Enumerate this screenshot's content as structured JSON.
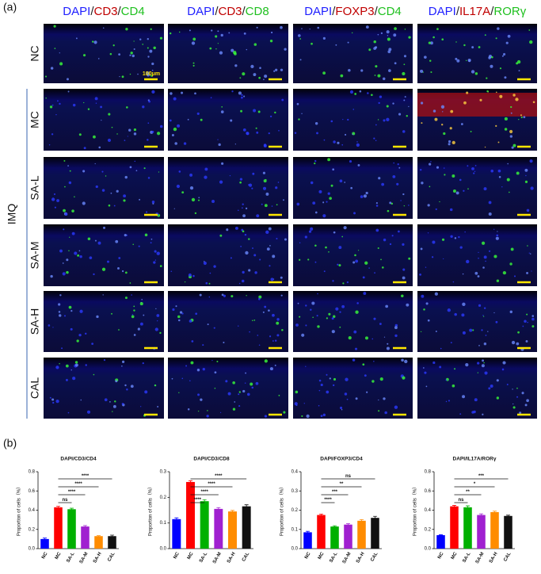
{
  "figure": {
    "panel_a": "(a)",
    "panel_b": "(b)",
    "group_label": "IMQ",
    "scale_label": "100μm",
    "columns": [
      [
        {
          "text": "DAPI",
          "color": "#1f1fff"
        },
        {
          "text": "/"
        },
        {
          "text": "CD3",
          "color": "#c00000"
        },
        {
          "text": "/"
        },
        {
          "text": "CD4",
          "color": "#1fc01f"
        }
      ],
      [
        {
          "text": "DAPI",
          "color": "#1f1fff"
        },
        {
          "text": "/"
        },
        {
          "text": "CD3",
          "color": "#c00000"
        },
        {
          "text": "/"
        },
        {
          "text": "CD8",
          "color": "#1fc01f"
        }
      ],
      [
        {
          "text": "DAPI",
          "color": "#1f1fff"
        },
        {
          "text": "/"
        },
        {
          "text": "FOXP3",
          "color": "#c00000"
        },
        {
          "text": "/"
        },
        {
          "text": "CD4",
          "color": "#1fc01f"
        }
      ],
      [
        {
          "text": "DAPI",
          "color": "#1f1fff"
        },
        {
          "text": "/"
        },
        {
          "text": "IL17A",
          "color": "#c00000"
        },
        {
          "text": "/"
        },
        {
          "text": "RORγ",
          "color": "#1fc01f"
        }
      ]
    ],
    "rows": [
      "NC",
      "MC",
      "SA-L",
      "SA-M",
      "SA-H",
      "CAL"
    ]
  },
  "chart_data": [
    {
      "type": "bar",
      "title": "DAPI/CD3/CD4",
      "y_label": "Proportion of cells（%）",
      "categories": [
        "NC",
        "MC",
        "SA-L",
        "SA-M",
        "SA-H",
        "CAL"
      ],
      "values": [
        0.1,
        0.43,
        0.41,
        0.23,
        0.13,
        0.13
      ],
      "errors": [
        0.01,
        0.01,
        0.01,
        0.01,
        0.005,
        0.01
      ],
      "colors": [
        "#0000ff",
        "#ff0000",
        "#00b000",
        "#a020d0",
        "#ff8c00",
        "#111111"
      ],
      "ylim": [
        0,
        0.8
      ],
      "yticks": [
        {
          "value": 0,
          "label": "0.0"
        },
        0.2,
        0.4,
        0.6,
        0.8
      ],
      "significance": [
        {
          "text": "****",
          "categories": [
            "MC",
            "CAL"
          ]
        },
        {
          "text": "****",
          "categories": [
            "MC",
            "SA-H"
          ]
        },
        {
          "text": "****",
          "categories": [
            "MC",
            "SA-M"
          ]
        },
        {
          "text": "ns",
          "categories": [
            "MC",
            "SA-L"
          ]
        }
      ]
    },
    {
      "type": "bar",
      "title": "DAPI/CD3/CD8",
      "y_label": "Proportion of cells（%）",
      "categories": [
        "NC",
        "MC",
        "SA-L",
        "SA-M",
        "SA-H",
        "CAL"
      ],
      "values": [
        0.115,
        0.26,
        0.185,
        0.155,
        0.145,
        0.165
      ],
      "errors": [
        0.005,
        0.005,
        0.006,
        0.005,
        0.004,
        0.006
      ],
      "colors": [
        "#0000ff",
        "#ff0000",
        "#00b000",
        "#a020d0",
        "#ff8c00",
        "#111111"
      ],
      "ylim": [
        0,
        0.3
      ],
      "yticks": [
        {
          "value": 0,
          "label": "0.0"
        },
        0.1,
        0.2,
        0.3
      ],
      "significance": [
        {
          "text": "****",
          "categories": [
            "MC",
            "CAL"
          ]
        },
        {
          "text": "****",
          "categories": [
            "MC",
            "SA-H"
          ]
        },
        {
          "text": "****",
          "categories": [
            "MC",
            "SA-M"
          ]
        },
        {
          "text": "****",
          "categories": [
            "MC",
            "SA-L"
          ]
        }
      ]
    },
    {
      "type": "bar",
      "title": "DAPI/FOXP3/CD4",
      "y_label": "Proportion of cells（%）",
      "categories": [
        "NC",
        "MC",
        "SA-L",
        "SA-M",
        "SA-H",
        "CAL"
      ],
      "values": [
        0.085,
        0.175,
        0.115,
        0.125,
        0.145,
        0.16
      ],
      "errors": [
        0.005,
        0.005,
        0.004,
        0.005,
        0.006,
        0.008
      ],
      "colors": [
        "#0000ff",
        "#ff0000",
        "#00b000",
        "#a020d0",
        "#ff8c00",
        "#111111"
      ],
      "ylim": [
        0,
        0.4
      ],
      "yticks": [
        {
          "value": 0,
          "label": "0.0"
        },
        0.1,
        0.2,
        0.3,
        0.4
      ],
      "significance": [
        {
          "text": "ns",
          "categories": [
            "MC",
            "CAL"
          ]
        },
        {
          "text": "**",
          "categories": [
            "MC",
            "SA-H"
          ]
        },
        {
          "text": "***",
          "categories": [
            "MC",
            "SA-M"
          ]
        },
        {
          "text": "****",
          "categories": [
            "MC",
            "SA-L"
          ]
        }
      ]
    },
    {
      "type": "bar",
      "title": "DAPI/IL17A/RORγ",
      "y_label": "Proportion of cells（%）",
      "categories": [
        "NC",
        "MC",
        "SA-L",
        "SA-M",
        "SA-H",
        "CAL"
      ],
      "values": [
        0.14,
        0.44,
        0.43,
        0.35,
        0.38,
        0.34
      ],
      "errors": [
        0.005,
        0.01,
        0.015,
        0.012,
        0.01,
        0.008
      ],
      "colors": [
        "#0000ff",
        "#ff0000",
        "#00b000",
        "#a020d0",
        "#ff8c00",
        "#111111"
      ],
      "ylim": [
        0,
        0.8
      ],
      "yticks": [
        {
          "value": 0,
          "label": "0.0"
        },
        0.2,
        0.4,
        0.6,
        0.8
      ],
      "significance": [
        {
          "text": "***",
          "categories": [
            "MC",
            "CAL"
          ]
        },
        {
          "text": "*",
          "categories": [
            "MC",
            "SA-H"
          ]
        },
        {
          "text": "**",
          "categories": [
            "MC",
            "SA-M"
          ]
        },
        {
          "text": "ns",
          "categories": [
            "MC",
            "SA-L"
          ]
        }
      ]
    }
  ]
}
